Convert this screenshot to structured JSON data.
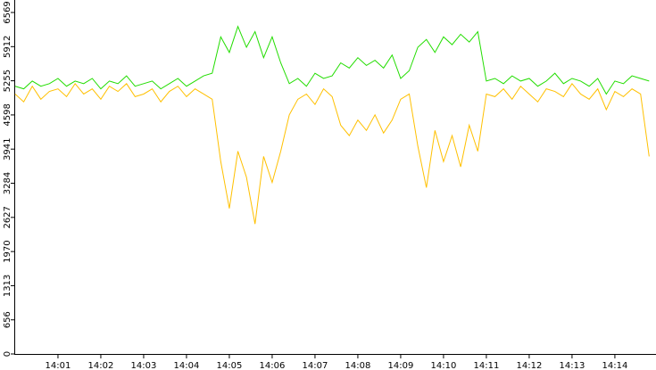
{
  "chart_data": {
    "type": "line",
    "x": [
      0,
      0.2,
      0.4,
      0.6,
      0.8,
      1,
      1.2,
      1.4,
      1.6,
      1.8,
      2,
      2.2,
      2.4,
      2.6,
      2.8,
      3,
      3.2,
      3.4,
      3.6,
      3.8,
      4,
      4.2,
      4.4,
      4.6,
      4.8,
      5,
      5.2,
      5.4,
      5.6,
      5.8,
      6,
      6.2,
      6.4,
      6.6,
      6.8,
      7,
      7.2,
      7.4,
      7.6,
      7.8,
      8,
      8.2,
      8.4,
      8.6,
      8.8,
      9,
      9.2,
      9.4,
      9.6,
      9.8,
      10,
      10.2,
      10.4,
      10.6,
      10.8,
      11,
      11.2,
      11.4,
      11.6,
      11.8,
      12,
      12.2,
      12.4,
      12.6,
      12.8,
      13,
      13.2,
      13.4,
      13.6,
      13.8,
      14,
      14.2,
      14.4,
      14.6,
      14.8
    ],
    "series": [
      {
        "color": "#22dd00",
        "values": [
          5150,
          5100,
          5250,
          5150,
          5200,
          5300,
          5150,
          5250,
          5200,
          5300,
          5100,
          5250,
          5200,
          5350,
          5150,
          5200,
          5250,
          5100,
          5200,
          5300,
          5150,
          5250,
          5350,
          5400,
          6100,
          5800,
          6300,
          5900,
          6200,
          5700,
          6100,
          5600,
          5200,
          5300,
          5150,
          5400,
          5300,
          5350,
          5600,
          5500,
          5700,
          5550,
          5650,
          5500,
          5750,
          5300,
          5450,
          5900,
          6050,
          5800,
          6100,
          5950,
          6150,
          6000,
          6200,
          5250,
          5300,
          5200,
          5350,
          5250,
          5300,
          5150,
          5250,
          5400,
          5200,
          5300,
          5250,
          5150,
          5300,
          5000,
          5250,
          5200,
          5350,
          5300,
          5250
        ]
      },
      {
        "color": "#ffc000",
        "values": [
          5000,
          4850,
          5150,
          4900,
          5050,
          5100,
          4950,
          5200,
          5000,
          5100,
          4900,
          5150,
          5050,
          5200,
          4950,
          5000,
          5100,
          4850,
          5050,
          5150,
          4950,
          5100,
          5000,
          4900,
          3700,
          2800,
          3900,
          3400,
          2500,
          3800,
          3300,
          3900,
          4600,
          4900,
          5000,
          4800,
          5100,
          4950,
          4400,
          4200,
          4500,
          4300,
          4600,
          4250,
          4500,
          4900,
          5000,
          4000,
          3200,
          4300,
          3700,
          4200,
          3600,
          4400,
          3900,
          5000,
          4950,
          5100,
          4900,
          5150,
          5000,
          4850,
          5100,
          5050,
          4950,
          5200,
          5000,
          4900,
          5100,
          4700,
          5050,
          4950,
          5100,
          5000,
          3800
        ]
      }
    ],
    "xlim": [
      -0.02,
      14.96
    ],
    "xticks": [
      {
        "value": 1,
        "label": "14:01"
      },
      {
        "value": 2,
        "label": "14:02"
      },
      {
        "value": 3,
        "label": "14:03"
      },
      {
        "value": 4,
        "label": "14:04"
      },
      {
        "value": 5,
        "label": "14:05"
      },
      {
        "value": 6,
        "label": "14:06"
      },
      {
        "value": 7,
        "label": "14:07"
      },
      {
        "value": 8,
        "label": "14:08"
      },
      {
        "value": 9,
        "label": "14:09"
      },
      {
        "value": 10,
        "label": "14:10"
      },
      {
        "value": 11,
        "label": "14:11"
      },
      {
        "value": 12,
        "label": "14:12"
      },
      {
        "value": 13,
        "label": "14:13"
      },
      {
        "value": 14,
        "label": "14:14"
      }
    ],
    "ylim": [
      0,
      6569
    ],
    "yticks": [
      0,
      656,
      1313,
      1970,
      2627,
      3284,
      3941,
      4598,
      5255,
      5912,
      6569
    ]
  }
}
